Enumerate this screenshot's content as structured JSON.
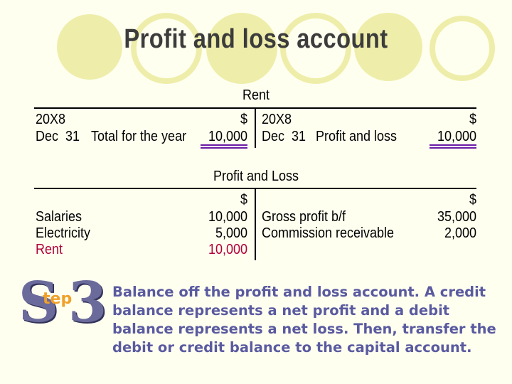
{
  "title": "Profit and loss account",
  "rent_account": {
    "heading": "Rent",
    "debit": {
      "year": "20X8",
      "currency": "$",
      "date": "Dec  31",
      "description": "Total for the year",
      "amount": "10,000"
    },
    "credit": {
      "year": "20X8",
      "currency": "$",
      "date": "Dec  31",
      "description": "Profit and loss",
      "amount": "10,000"
    }
  },
  "pl_account": {
    "heading": "Profit and Loss",
    "debit": {
      "currency": "$",
      "items": [
        {
          "label": "Salaries",
          "amount": "10,000"
        },
        {
          "label": "Electricity",
          "amount": "5,000"
        },
        {
          "label": "Rent",
          "amount": "10,000"
        }
      ]
    },
    "credit": {
      "currency": "$",
      "items": [
        {
          "label": "Gross profit b/f",
          "amount": "35,000"
        },
        {
          "label": "Commission receivable",
          "amount": "2,000"
        }
      ]
    }
  },
  "step": {
    "letter_s": "S",
    "letters_tep": "tep",
    "number": "3",
    "description": "Balance off the profit and loss account. A credit balance represents a net profit and a debit balance represents a net loss. Then, transfer the debit or credit balance to the capital account."
  },
  "colors": {
    "background": "#fffff0",
    "decor_circle": "#eeeeaa",
    "highlight_red": "#b0003a",
    "double_underline": "#6a1aa6",
    "step_text": "#5a5aa0"
  }
}
